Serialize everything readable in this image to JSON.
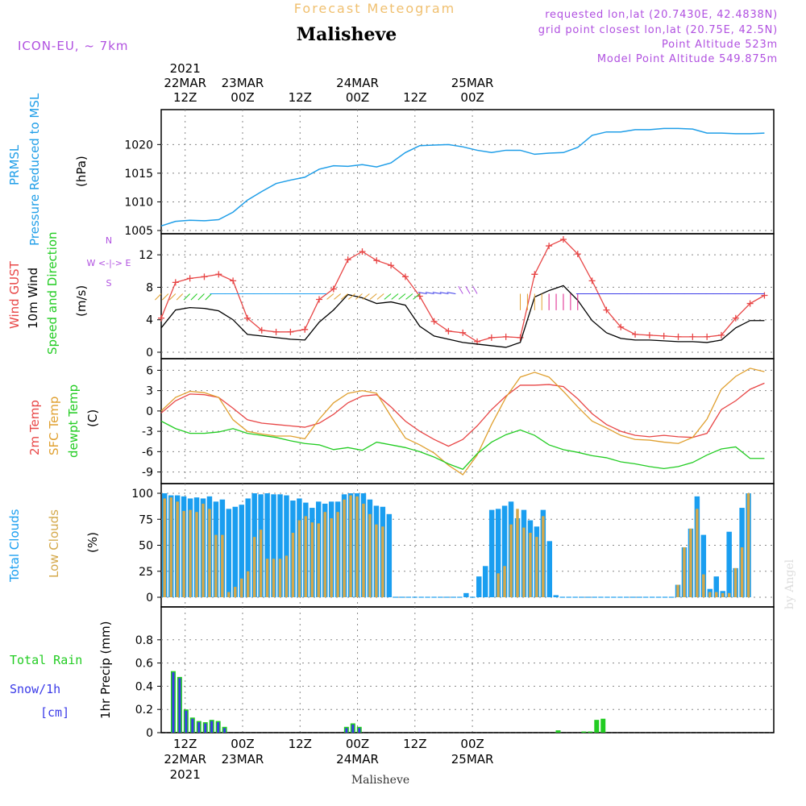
{
  "header": {
    "top_title": "Forecast Meteogram",
    "location": "Malisheve",
    "model": "ICON-EU, ~ 7km",
    "requested": "requested lon,lat (20.7430E, 42.4838N)",
    "grid_point": "grid point closest lon,lat (20.75E, 42.5N)",
    "altitude": "Point Altitude 523m",
    "model_altitude": "Model Point Altitude 549.875m",
    "bottom_label": "Malisheve",
    "credit": "by Angel"
  },
  "colors": {
    "pressure": "#1f9ee8",
    "gust": "#e84646",
    "wind": "#000000",
    "direction": "#22cc22",
    "temp": "#e84646",
    "sfc_temp": "#e0a030",
    "dewpt": "#22cc22",
    "total_clouds": "#1a9ef0",
    "low_clouds": "#d4a84a",
    "rain": "#22cc22",
    "snow": "#3a3ae8",
    "purple": "#b050e0",
    "title_orange": "#f0c070"
  },
  "time_axis": {
    "top_labels": [
      {
        "line1": "2021",
        "line2": "22MAR",
        "line3": "12Z"
      },
      {
        "line2": "23MAR",
        "line3": "00Z"
      },
      {
        "line3": "12Z"
      },
      {
        "line2": "24MAR",
        "line3": "00Z"
      },
      {
        "line3": "12Z"
      },
      {
        "line2": "25MAR",
        "line3": "00Z"
      }
    ],
    "bottom_labels": [
      {
        "line1": "12Z",
        "line2": "22MAR",
        "line3": "2021"
      },
      {
        "line1": "00Z",
        "line2": "23MAR"
      },
      {
        "line1": "12Z"
      },
      {
        "line1": "00Z",
        "line2": "24MAR"
      },
      {
        "line1": "12Z"
      },
      {
        "line1": "00Z",
        "line2": "25MAR"
      }
    ]
  },
  "panels": {
    "pressure": {
      "label1": "PRMSL",
      "label2": "Pressure Reduced to MSL",
      "unit": "(hPa)"
    },
    "wind": {
      "label_gust": "Wind GUST",
      "label_wind": "10m Wind",
      "label_dir": "Speed and Direction",
      "unit": "(m/s)",
      "compass_ns": "N",
      "compass_we": "W <-|-> E",
      "compass_s": "S"
    },
    "temp": {
      "label_temp": "2m Temp",
      "label_sfc": "SFC Temp",
      "label_dew": "dewpt Temp",
      "unit": "(C)"
    },
    "clouds": {
      "label_total": "Total Clouds",
      "label_low": "Low Clouds",
      "unit": "(%)"
    },
    "precip": {
      "label_rain": "Total  Rain",
      "label_snow": "Snow/1h",
      "label_cm": "[cm]",
      "unit": "1hr Precip (mm)"
    }
  },
  "chart_data": [
    {
      "type": "line",
      "title": "PRMSL Pressure Reduced to MSL",
      "ylabel": "(hPa)",
      "ylim": [
        1005,
        1023
      ],
      "yticks": [
        1005,
        1010,
        1015,
        1020
      ],
      "x_unit": "hours from 2021-03-22 07Z",
      "x": [
        0,
        3,
        6,
        9,
        12,
        15,
        18,
        21,
        24,
        27,
        30,
        33,
        36,
        39,
        42,
        45,
        48,
        51,
        54,
        57,
        60,
        63,
        66,
        69,
        72,
        75,
        78,
        81,
        84,
        87,
        90,
        93,
        96,
        99,
        102,
        105,
        108,
        111,
        114,
        117,
        120,
        123,
        126
      ],
      "values": [
        1005.8,
        1006.6,
        1006.8,
        1006.7,
        1006.9,
        1008.2,
        1010.3,
        1011.8,
        1013.2,
        1013.8,
        1014.3,
        1015.7,
        1016.3,
        1016.2,
        1016.5,
        1016.1,
        1016.8,
        1018.6,
        1019.8,
        1019.9,
        1020.0,
        1019.6,
        1019.0,
        1018.6,
        1019.0,
        1019.0,
        1018.3,
        1018.5,
        1018.6,
        1019.5,
        1021.6,
        1022.2,
        1022.2,
        1022.6,
        1022.6,
        1022.8,
        1022.8,
        1022.7,
        1022.0,
        1022.0,
        1021.9,
        1021.9,
        1022.0
      ]
    },
    {
      "type": "line",
      "title": "Wind GUST / 10m Wind Speed and Direction",
      "ylabel": "(m/s)",
      "ylim": [
        0,
        14
      ],
      "yticks": [
        0,
        4,
        8,
        12
      ],
      "x_unit": "hours from 2021-03-22 07Z",
      "series": [
        {
          "name": "Wind GUST",
          "x": [
            0,
            3,
            6,
            9,
            12,
            15,
            18,
            21,
            24,
            27,
            30,
            33,
            36,
            39,
            42,
            45,
            48,
            51,
            54,
            57,
            60,
            63,
            66,
            69,
            72,
            75,
            78,
            81,
            84,
            87,
            90,
            93,
            96,
            99,
            102,
            105,
            108,
            111,
            114,
            117,
            120,
            123,
            126
          ],
          "values": [
            4.2,
            8.6,
            9.1,
            9.3,
            9.6,
            8.8,
            4.2,
            2.7,
            2.5,
            2.5,
            2.8,
            6.5,
            7.8,
            11.4,
            12.4,
            11.3,
            10.7,
            9.3,
            6.9,
            3.8,
            2.6,
            2.4,
            1.3,
            1.8,
            1.9,
            1.8,
            9.6,
            13.1,
            13.9,
            12.1,
            8.8,
            5.2,
            3.1,
            2.2,
            2.1,
            2.0,
            1.9,
            1.9,
            1.9,
            2.1,
            4.2,
            6.0,
            7.0
          ]
        },
        {
          "name": "10m Wind",
          "x": [
            0,
            3,
            6,
            9,
            12,
            15,
            18,
            21,
            24,
            27,
            30,
            33,
            36,
            39,
            42,
            45,
            48,
            51,
            54,
            57,
            60,
            63,
            66,
            69,
            72,
            75,
            78,
            81,
            84,
            87,
            90,
            93,
            96,
            99,
            102,
            105,
            108,
            111,
            114,
            117,
            120,
            123,
            126
          ],
          "values": [
            3.0,
            5.2,
            5.5,
            5.4,
            5.1,
            4.0,
            2.2,
            2.0,
            1.8,
            1.6,
            1.5,
            3.7,
            5.2,
            7.1,
            6.7,
            6.0,
            6.2,
            5.8,
            3.2,
            2.0,
            1.6,
            1.2,
            1.0,
            0.8,
            0.6,
            1.2,
            6.8,
            7.6,
            8.2,
            6.4,
            3.9,
            2.4,
            1.7,
            1.5,
            1.5,
            1.4,
            1.3,
            1.3,
            1.2,
            1.5,
            3.0,
            3.9,
            3.9
          ]
        }
      ]
    },
    {
      "type": "line",
      "title": "2m Temp / SFC Temp / dewpt Temp",
      "ylabel": "(C)",
      "ylim": [
        -10,
        7
      ],
      "yticks": [
        -9,
        -6,
        -3,
        0,
        3,
        6
      ],
      "x_unit": "hours from 2021-03-22 07Z",
      "series": [
        {
          "name": "2m Temp",
          "x": [
            0,
            3,
            6,
            9,
            12,
            15,
            18,
            21,
            24,
            27,
            30,
            33,
            36,
            39,
            42,
            45,
            48,
            51,
            54,
            57,
            60,
            63,
            66,
            69,
            72,
            75,
            78,
            81,
            84,
            87,
            90,
            93,
            96,
            99,
            102,
            105,
            108,
            111,
            114,
            117,
            120,
            123,
            126
          ],
          "values": [
            -0.3,
            1.5,
            2.5,
            2.4,
            2.0,
            0.4,
            -1.3,
            -1.8,
            -2.0,
            -2.2,
            -2.4,
            -1.8,
            -0.5,
            1.2,
            2.2,
            2.4,
            0.6,
            -1.5,
            -3.0,
            -4.2,
            -5.2,
            -4.2,
            -2.2,
            0.2,
            2.2,
            3.8,
            3.8,
            3.9,
            3.6,
            1.8,
            -0.4,
            -2.0,
            -3.0,
            -3.6,
            -3.8,
            -3.6,
            -3.8,
            -3.9,
            -3.3,
            0.2,
            1.5,
            3.2,
            4.1
          ]
        },
        {
          "name": "SFC Temp",
          "x": [
            0,
            3,
            6,
            9,
            12,
            15,
            18,
            21,
            24,
            27,
            30,
            33,
            36,
            39,
            42,
            45,
            48,
            51,
            54,
            57,
            60,
            63,
            66,
            69,
            72,
            75,
            78,
            81,
            84,
            87,
            90,
            93,
            96,
            99,
            102,
            105,
            108,
            111,
            114,
            117,
            120,
            123,
            126
          ],
          "values": [
            0.0,
            2.0,
            2.9,
            2.7,
            2.0,
            -1.3,
            -3.0,
            -3.4,
            -3.7,
            -3.7,
            -4.1,
            -1.2,
            1.2,
            2.6,
            3.0,
            2.6,
            -0.8,
            -4.0,
            -5.0,
            -6.2,
            -8.0,
            -9.4,
            -6.5,
            -2.0,
            2.0,
            5.0,
            5.7,
            5.0,
            2.9,
            0.6,
            -1.5,
            -2.5,
            -3.6,
            -4.2,
            -4.3,
            -4.6,
            -4.8,
            -3.9,
            -1.2,
            3.2,
            5.1,
            6.3,
            5.8
          ]
        },
        {
          "name": "dewpt Temp",
          "x": [
            0,
            3,
            6,
            9,
            12,
            15,
            18,
            21,
            24,
            27,
            30,
            33,
            36,
            39,
            42,
            45,
            48,
            51,
            54,
            57,
            60,
            63,
            66,
            69,
            72,
            75,
            78,
            81,
            84,
            87,
            90,
            93,
            96,
            99,
            102,
            105,
            108,
            111,
            114,
            117,
            120,
            123,
            126
          ],
          "values": [
            -1.5,
            -2.6,
            -3.3,
            -3.3,
            -3.1,
            -2.6,
            -3.3,
            -3.6,
            -3.9,
            -4.4,
            -4.8,
            -5.0,
            -5.7,
            -5.4,
            -5.8,
            -4.6,
            -5.0,
            -5.4,
            -6.0,
            -6.8,
            -7.8,
            -8.6,
            -6.3,
            -4.6,
            -3.5,
            -2.8,
            -3.6,
            -5.0,
            -5.7,
            -6.1,
            -6.6,
            -6.9,
            -7.5,
            -7.8,
            -8.2,
            -8.5,
            -8.2,
            -7.6,
            -6.5,
            -5.6,
            -5.3,
            -7.0,
            -7.0
          ]
        }
      ]
    },
    {
      "type": "bar",
      "title": "Total Clouds / Low Clouds",
      "ylabel": "(%)",
      "ylim": [
        0,
        100
      ],
      "yticks": [
        0,
        25,
        50,
        75,
        100
      ],
      "x_unit": "hours from 2021-03-22 07Z",
      "x_start": 0,
      "x_step": 1,
      "series": [
        {
          "name": "Total Clouds",
          "values": [
            100,
            98,
            98,
            97,
            95,
            96,
            95,
            97,
            92,
            94,
            85,
            87,
            89,
            95,
            100,
            99,
            100,
            99,
            99,
            98,
            93,
            95,
            91,
            86,
            92,
            90,
            92,
            92,
            99,
            100,
            100,
            100,
            94,
            88,
            87,
            80,
            0,
            0,
            0,
            0,
            0,
            0,
            0,
            0,
            0,
            0,
            0,
            4,
            0,
            20,
            30,
            84,
            85,
            88,
            92,
            76,
            84,
            74,
            68,
            84,
            54,
            2,
            0,
            0,
            0,
            0,
            0,
            0,
            0,
            0,
            0,
            0,
            0,
            0,
            0,
            0,
            0,
            0,
            0,
            0,
            12,
            48,
            66,
            97,
            60,
            8,
            20,
            6,
            63,
            28,
            86,
            100
          ]
        },
        {
          "name": "Low Clouds",
          "values": [
            95,
            96,
            92,
            83,
            84,
            82,
            90,
            85,
            60,
            60,
            5,
            10,
            18,
            25,
            58,
            65,
            37,
            37,
            37,
            40,
            62,
            74,
            78,
            72,
            71,
            82,
            76,
            82,
            94,
            98,
            97,
            90,
            80,
            70,
            68,
            0,
            0,
            0,
            0,
            0,
            0,
            0,
            0,
            0,
            0,
            0,
            0,
            0,
            0,
            0,
            0,
            0,
            23,
            30,
            70,
            85,
            67,
            62,
            58,
            78,
            0,
            0,
            0,
            0,
            0,
            0,
            0,
            0,
            0,
            0,
            0,
            0,
            0,
            0,
            0,
            0,
            0,
            0,
            0,
            0,
            12,
            48,
            66,
            85,
            22,
            5,
            5,
            4,
            4,
            28,
            48,
            100
          ]
        }
      ]
    },
    {
      "type": "bar",
      "title": "1hr Precip",
      "ylabel": "1hr Precip (mm)",
      "ylim": [
        0,
        1.0
      ],
      "yticks": [
        0,
        0.2,
        0.4,
        0.6,
        0.8
      ],
      "x_unit": "hours from 2021-03-22 07Z",
      "series": [
        {
          "name": "Total Rain",
          "points": [
            [
              1,
              0.53
            ],
            [
              2,
              0.48
            ],
            [
              3,
              0.2
            ],
            [
              4,
              0.13
            ],
            [
              5,
              0.1
            ],
            [
              6,
              0.09
            ],
            [
              7,
              0.11
            ],
            [
              8,
              0.1
            ],
            [
              9,
              0.05
            ],
            [
              28,
              0.05
            ],
            [
              29,
              0.08
            ],
            [
              30,
              0.05
            ],
            [
              61,
              0.02
            ],
            [
              65,
              0.01
            ],
            [
              66,
              0.01
            ],
            [
              67,
              0.11
            ],
            [
              68,
              0.12
            ]
          ]
        },
        {
          "name": "Snow/1h",
          "points": [
            [
              1,
              0.53
            ],
            [
              2,
              0.48
            ],
            [
              3,
              0.2
            ],
            [
              4,
              0.13
            ],
            [
              5,
              0.1
            ],
            [
              6,
              0.09
            ],
            [
              7,
              0.11
            ],
            [
              8,
              0.1
            ],
            [
              9,
              0.05
            ],
            [
              28,
              0.05
            ],
            [
              29,
              0.08
            ],
            [
              30,
              0.05
            ]
          ]
        }
      ]
    }
  ]
}
